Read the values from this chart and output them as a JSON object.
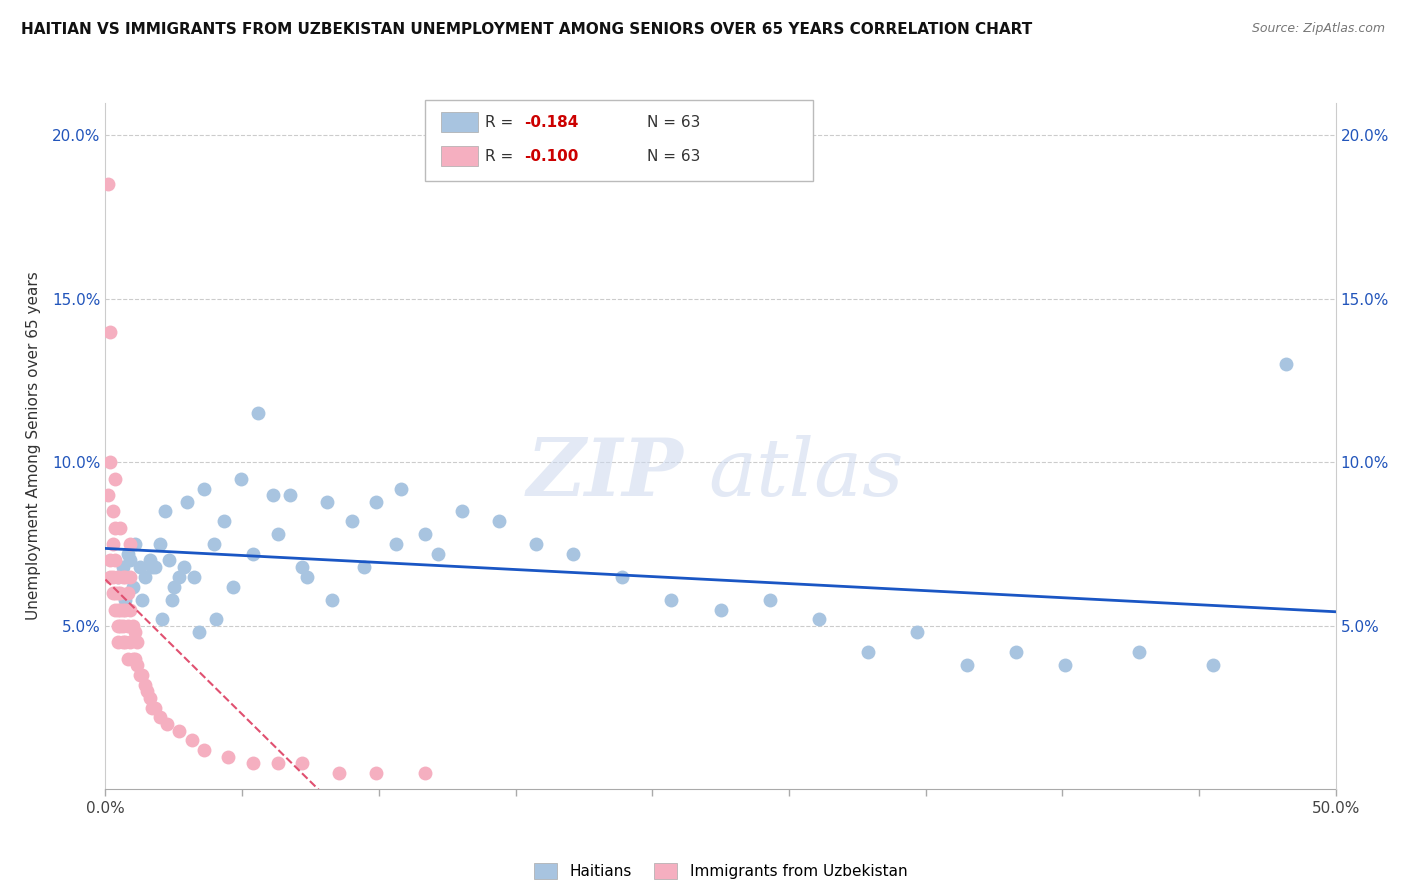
{
  "title": "HAITIAN VS IMMIGRANTS FROM UZBEKISTAN UNEMPLOYMENT AMONG SENIORS OVER 65 YEARS CORRELATION CHART",
  "source": "Source: ZipAtlas.com",
  "ylabel": "Unemployment Among Seniors over 65 years",
  "xlim": [
    0.0,
    0.5
  ],
  "ylim": [
    0.0,
    0.21
  ],
  "x_left_label": "0.0%",
  "x_right_label": "50.0%",
  "yticks": [
    0.05,
    0.1,
    0.15,
    0.2
  ],
  "ytick_labels": [
    "5.0%",
    "10.0%",
    "15.0%",
    "20.0%"
  ],
  "xtick_positions": [
    0.0,
    0.05556,
    0.1111,
    0.1667,
    0.2222,
    0.2778,
    0.3333,
    0.3889,
    0.4444,
    0.5
  ],
  "legend_blue_r": "-0.184",
  "legend_blue_n": "63",
  "legend_pink_r": "-0.100",
  "legend_pink_n": "63",
  "haitian_color": "#a8c4e0",
  "uzbekistan_color": "#f5afc0",
  "haitian_line_color": "#1a56c4",
  "uzbekistan_line_color": "#e05070",
  "haitian_x": [
    0.005,
    0.007,
    0.009,
    0.01,
    0.012,
    0.014,
    0.016,
    0.018,
    0.02,
    0.022,
    0.024,
    0.026,
    0.028,
    0.03,
    0.033,
    0.036,
    0.04,
    0.044,
    0.048,
    0.055,
    0.062,
    0.068,
    0.075,
    0.082,
    0.09,
    0.1,
    0.11,
    0.12,
    0.13,
    0.145,
    0.16,
    0.175,
    0.19,
    0.21,
    0.23,
    0.25,
    0.27,
    0.29,
    0.31,
    0.33,
    0.35,
    0.37,
    0.39,
    0.42,
    0.45,
    0.48,
    0.008,
    0.011,
    0.015,
    0.019,
    0.023,
    0.027,
    0.032,
    0.038,
    0.045,
    0.052,
    0.06,
    0.07,
    0.08,
    0.092,
    0.105,
    0.118,
    0.135
  ],
  "haitian_y": [
    0.065,
    0.068,
    0.072,
    0.07,
    0.075,
    0.068,
    0.065,
    0.07,
    0.068,
    0.075,
    0.085,
    0.07,
    0.062,
    0.065,
    0.088,
    0.065,
    0.092,
    0.075,
    0.082,
    0.095,
    0.115,
    0.09,
    0.09,
    0.065,
    0.088,
    0.082,
    0.088,
    0.092,
    0.078,
    0.085,
    0.082,
    0.075,
    0.072,
    0.065,
    0.058,
    0.055,
    0.058,
    0.052,
    0.042,
    0.048,
    0.038,
    0.042,
    0.038,
    0.042,
    0.038,
    0.13,
    0.058,
    0.062,
    0.058,
    0.068,
    0.052,
    0.058,
    0.068,
    0.048,
    0.052,
    0.062,
    0.072,
    0.078,
    0.068,
    0.058,
    0.068,
    0.075,
    0.072
  ],
  "uzbekistan_x": [
    0.001,
    0.001,
    0.002,
    0.002,
    0.002,
    0.003,
    0.003,
    0.003,
    0.004,
    0.004,
    0.004,
    0.004,
    0.005,
    0.005,
    0.005,
    0.005,
    0.005,
    0.006,
    0.006,
    0.006,
    0.006,
    0.007,
    0.007,
    0.007,
    0.007,
    0.008,
    0.008,
    0.008,
    0.009,
    0.009,
    0.009,
    0.01,
    0.01,
    0.01,
    0.01,
    0.011,
    0.011,
    0.012,
    0.012,
    0.013,
    0.013,
    0.014,
    0.015,
    0.016,
    0.017,
    0.018,
    0.019,
    0.02,
    0.022,
    0.025,
    0.03,
    0.035,
    0.04,
    0.05,
    0.06,
    0.07,
    0.08,
    0.095,
    0.11,
    0.13,
    0.002,
    0.003,
    0.004
  ],
  "uzbekistan_y": [
    0.185,
    0.09,
    0.07,
    0.065,
    0.14,
    0.065,
    0.075,
    0.06,
    0.055,
    0.06,
    0.07,
    0.095,
    0.05,
    0.06,
    0.065,
    0.055,
    0.045,
    0.05,
    0.055,
    0.06,
    0.08,
    0.045,
    0.05,
    0.055,
    0.065,
    0.045,
    0.055,
    0.065,
    0.04,
    0.05,
    0.06,
    0.045,
    0.055,
    0.065,
    0.075,
    0.04,
    0.05,
    0.04,
    0.048,
    0.038,
    0.045,
    0.035,
    0.035,
    0.032,
    0.03,
    0.028,
    0.025,
    0.025,
    0.022,
    0.02,
    0.018,
    0.015,
    0.012,
    0.01,
    0.008,
    0.008,
    0.008,
    0.005,
    0.005,
    0.005,
    0.1,
    0.085,
    0.08
  ]
}
